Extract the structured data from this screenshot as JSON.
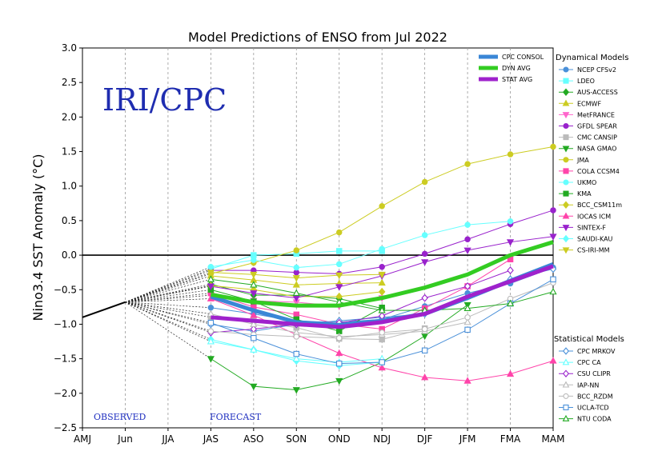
{
  "title": "Model Predictions of ENSO from Jul 2022",
  "ylabel": "Nino3.4 SST Anomaly (°C)",
  "watermark": "IRI/CPC",
  "observed_label": "OBSERVED",
  "forecast_label": "FORECAST",
  "legend": {
    "dyn_title": "Dynamical Models",
    "stat_title": "Statistical Models",
    "avg_entries": [
      {
        "label": "CPC CONSOL",
        "color": "#3a86d6"
      },
      {
        "label": "DYN AVG",
        "color": "#33cc22"
      },
      {
        "label": "STAT AVG",
        "color": "#9f22cc"
      }
    ]
  },
  "chart_data": {
    "type": "line",
    "title": "Model Predictions of ENSO from Jul 2022",
    "ylabel": "Nino3.4 SST Anomaly (°C)",
    "categories": [
      "AMJ",
      "Jun",
      "JJA",
      "JAS",
      "ASO",
      "SON",
      "OND",
      "NDJ",
      "DJF",
      "JFM",
      "FMA",
      "MAM"
    ],
    "ylim": [
      -2.5,
      3.0
    ],
    "yticks": [
      -2.5,
      -2.0,
      -1.5,
      -1.0,
      -0.5,
      0.0,
      0.5,
      1.0,
      1.5,
      2.0,
      2.5,
      3.0
    ],
    "ytick_labels": [
      "−2.5",
      "−2.0",
      "−1.5",
      "−1.0",
      "−0.5",
      "0.0",
      "0.5",
      "1.0",
      "1.5",
      "2.0",
      "2.5",
      "3.0"
    ],
    "grid": "vertical",
    "zero_line": true,
    "observed": {
      "x": [
        "AMJ",
        "Jun"
      ],
      "values": [
        -0.9,
        -0.68
      ]
    },
    "forecast_start": "Jun",
    "forecast_start_value": -0.68,
    "dynamical_models": [
      {
        "name": "NCEP CFSv2",
        "color": "#4a90d9",
        "marker": "circle",
        "fill": true,
        "values": [
          -0.76,
          -0.85,
          -0.96,
          -0.97,
          -0.93,
          -0.74,
          -0.55,
          -0.41,
          -0.18
        ]
      },
      {
        "name": "LDEO",
        "color": "#66ffff",
        "marker": "square",
        "fill": true,
        "values": [
          -0.2,
          0.0,
          0.02,
          0.06,
          0.06,
          null,
          null,
          null,
          null
        ]
      },
      {
        "name": "AUS-ACCESS",
        "color": "#22aa22",
        "marker": "diamond",
        "fill": true,
        "values": [
          -0.42,
          -0.58,
          -0.58,
          -0.63,
          -0.77,
          null,
          null,
          null,
          null
        ]
      },
      {
        "name": "ECMWF",
        "color": "#cccc22",
        "marker": "triangle-up",
        "fill": true,
        "values": [
          -0.3,
          -0.36,
          -0.43,
          -0.41,
          -0.4,
          null,
          null,
          null,
          null
        ]
      },
      {
        "name": "MetFRANCE",
        "color": "#ff66cc",
        "marker": "triangle-down",
        "fill": true,
        "values": [
          -0.58,
          -0.66,
          -0.68,
          -0.74,
          -0.62,
          null,
          null,
          null,
          null
        ]
      },
      {
        "name": "GFDL SPEAR",
        "color": "#9922cc",
        "marker": "circle",
        "fill": true,
        "values": [
          -0.22,
          -0.22,
          -0.25,
          -0.27,
          -0.17,
          0.02,
          0.23,
          0.45,
          0.65
        ]
      },
      {
        "name": "CMC CANSIP",
        "color": "#bbbbbb",
        "marker": "square",
        "fill": true,
        "values": [
          -0.9,
          -0.95,
          -1.05,
          -1.21,
          -1.22,
          -1.06,
          null,
          null,
          null
        ]
      },
      {
        "name": "NASA GMAO",
        "color": "#22aa22",
        "marker": "triangle-down",
        "fill": true,
        "values": [
          -1.5,
          -1.9,
          -1.95,
          -1.82,
          -1.55,
          -1.17,
          -0.72,
          null,
          null
        ]
      },
      {
        "name": "JMA",
        "color": "#cccc22",
        "marker": "circle",
        "fill": true,
        "values": [
          -0.27,
          -0.11,
          0.07,
          0.33,
          0.71,
          1.06,
          1.32,
          1.46,
          1.57
        ]
      },
      {
        "name": "COLA CCSM4",
        "color": "#ff44aa",
        "marker": "square",
        "fill": true,
        "values": [
          -0.55,
          -0.75,
          -0.86,
          -1.0,
          -1.07,
          -0.77,
          -0.45,
          -0.06,
          null
        ]
      },
      {
        "name": "UKMO",
        "color": "#66ffff",
        "marker": "circle",
        "fill": true,
        "values": [
          -0.17,
          -0.07,
          -0.18,
          -0.13,
          0.09,
          0.29,
          0.44,
          0.49,
          null
        ]
      },
      {
        "name": "KMA",
        "color": "#22aa22",
        "marker": "square",
        "fill": true,
        "values": [
          -0.5,
          -0.67,
          -0.93,
          -1.1,
          -0.76,
          null,
          null,
          null,
          null
        ]
      },
      {
        "name": "BCC_CSM11m",
        "color": "#cccc22",
        "marker": "diamond",
        "fill": true,
        "values": [
          -0.44,
          -0.5,
          -0.6,
          -0.6,
          -0.53,
          null,
          null,
          null,
          null
        ]
      },
      {
        "name": "IOCAS ICM",
        "color": "#ff44aa",
        "marker": "triangle-up",
        "fill": true,
        "values": [
          -0.63,
          -0.87,
          -1.15,
          -1.42,
          -1.63,
          -1.77,
          -1.82,
          -1.72,
          -1.53
        ]
      },
      {
        "name": "SINTEX-F",
        "color": "#9922cc",
        "marker": "triangle-down",
        "fill": true,
        "values": [
          -0.45,
          -0.55,
          -0.62,
          -0.46,
          -0.3,
          -0.1,
          0.07,
          0.19,
          0.27
        ]
      },
      {
        "name": "SAUDI-KAU",
        "color": "#66ffff",
        "marker": "diamond",
        "fill": true,
        "values": [
          -1.22,
          -1.37,
          -1.53,
          -1.6,
          -1.55,
          null,
          null,
          null,
          null
        ]
      },
      {
        "name": "CS-IRI-MM",
        "color": "#cccc22",
        "marker": "triangle-down",
        "fill": true,
        "values": [
          -0.25,
          -0.28,
          -0.33,
          -0.29,
          -0.28,
          null,
          null,
          null,
          null
        ]
      }
    ],
    "statistical_models": [
      {
        "name": "CPC MRKOV",
        "color": "#4a90d9",
        "marker": "diamond",
        "fill": false,
        "values": [
          -1.0,
          -1.1,
          -1.0,
          -0.95,
          -0.9,
          -0.85,
          -0.6,
          -0.35,
          -0.2
        ]
      },
      {
        "name": "CPC CA",
        "color": "#66ffff",
        "marker": "triangle-up",
        "fill": false,
        "values": [
          -1.25,
          -1.37,
          -1.5,
          -1.55,
          -1.5,
          null,
          null,
          null,
          null
        ]
      },
      {
        "name": "CSU CLIPR",
        "color": "#9922cc",
        "marker": "diamond",
        "fill": false,
        "values": [
          -1.12,
          -1.07,
          -1.0,
          -0.98,
          -0.88,
          -0.62,
          -0.45,
          -0.22,
          null
        ]
      },
      {
        "name": "IAP-NN",
        "color": "#bbbbbb",
        "marker": "triangle-up",
        "fill": false,
        "values": [
          -0.85,
          -1.0,
          -1.12,
          -1.18,
          -1.15,
          -1.1,
          -0.97,
          null,
          null
        ]
      },
      {
        "name": "BCC_RZDM",
        "color": "#bbbbbb",
        "marker": "circle",
        "fill": false,
        "values": [
          -1.1,
          -1.15,
          -1.18,
          -1.2,
          -1.12,
          -1.07,
          -0.9,
          -0.63,
          -0.4
        ]
      },
      {
        "name": "UCLA-TCD",
        "color": "#4a90d9",
        "marker": "square",
        "fill": false,
        "values": [
          -0.98,
          -1.2,
          -1.43,
          -1.57,
          -1.55,
          -1.38,
          -1.08,
          -0.7,
          -0.35
        ]
      },
      {
        "name": "NTU CODA",
        "color": "#22aa22",
        "marker": "triangle-up",
        "fill": false,
        "values": [
          -0.35,
          -0.43,
          -0.55,
          -0.68,
          -0.8,
          -0.8,
          -0.77,
          -0.7,
          -0.53
        ]
      }
    ],
    "averages": [
      {
        "name": "CPC CONSOL",
        "color": "#3a86d6",
        "values": [
          -0.6,
          -0.8,
          -0.97,
          -1.01,
          -0.95,
          -0.85,
          -0.62,
          -0.37,
          -0.13
        ]
      },
      {
        "name": "DYN AVG",
        "color": "#33cc22",
        "values": [
          -0.57,
          -0.68,
          -0.73,
          -0.73,
          -0.62,
          -0.47,
          -0.28,
          0.0,
          0.19
        ]
      },
      {
        "name": "STAT AVG",
        "color": "#9f22cc",
        "values": [
          -0.9,
          -0.95,
          -1.0,
          -1.04,
          -0.97,
          -0.85,
          -0.6,
          -0.38,
          -0.16
        ]
      }
    ]
  }
}
